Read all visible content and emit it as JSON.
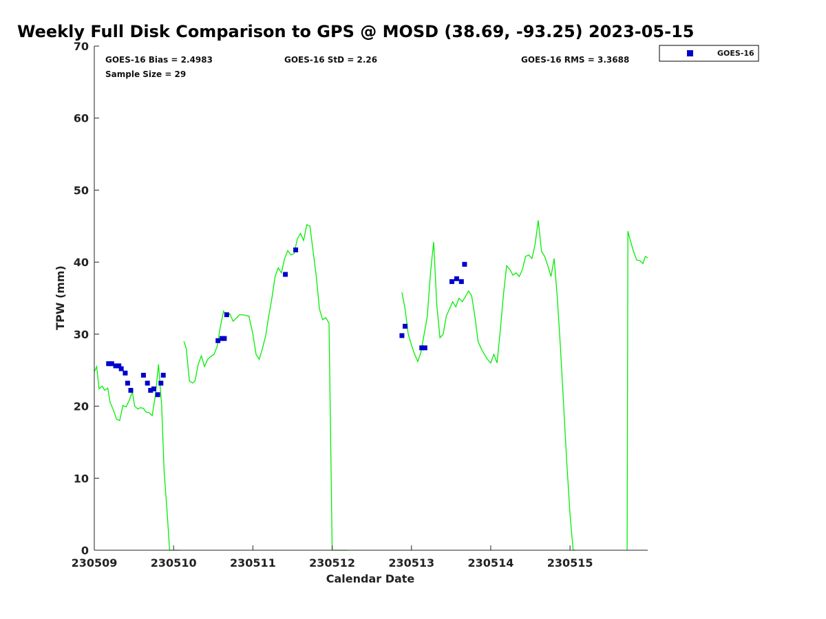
{
  "chart_data": {
    "type": "scatter",
    "title": "Weekly Full Disk Comparison to GPS @ MOSD (38.69, -93.25) 2023-05-15",
    "xlabel": "Calendar Date",
    "ylabel": "TPW (mm)",
    "xlim": [
      0,
      6.98
    ],
    "ylim": [
      0,
      70
    ],
    "x_tick_labels": [
      "230509",
      "230510",
      "230511",
      "230512",
      "230513",
      "230514",
      "230515"
    ],
    "x_tick_values": [
      0,
      1,
      2,
      3,
      4,
      5,
      6
    ],
    "y_ticks": [
      0,
      10,
      20,
      30,
      40,
      50,
      60,
      70
    ],
    "x_unit_note": "x values in days since 230509 00:00",
    "legend": {
      "position": "top-right (outside)",
      "entries": [
        "GOES-16"
      ]
    },
    "stats": {
      "bias": "GOES-16 Bias = 2.4983",
      "std": "GOES-16 StD = 2.26",
      "rms": "GOES-16 RMS = 3.3688",
      "sample": "Sample Size = 29"
    },
    "colors": {
      "goes16": "#0000cc",
      "gps_line": "#00ee00"
    },
    "series": [
      {
        "name": "GOES-16",
        "style": "square-marker",
        "x": [
          0.18,
          0.22,
          0.27,
          0.31,
          0.34,
          0.39,
          0.42,
          0.46,
          0.62,
          0.67,
          0.71,
          0.75,
          0.8,
          0.84,
          0.87,
          1.56,
          1.61,
          1.64,
          1.67,
          2.41,
          2.54,
          3.88,
          3.92,
          4.13,
          4.17,
          4.51,
          4.57,
          4.63,
          4.67
        ],
        "y": [
          25.9,
          25.9,
          25.6,
          25.6,
          25.2,
          24.6,
          23.2,
          22.2,
          24.3,
          23.2,
          22.2,
          22.4,
          21.6,
          23.2,
          24.3,
          29.1,
          29.4,
          29.4,
          32.7,
          38.3,
          41.7,
          29.8,
          31.1,
          28.1,
          28.1,
          37.3,
          37.7,
          37.3,
          39.7
        ]
      },
      {
        "name": "GPS",
        "style": "line",
        "segments": [
          {
            "x": [
              0.0,
              0.03,
              0.06,
              0.1,
              0.13,
              0.17,
              0.2,
              0.24,
              0.28,
              0.32,
              0.36,
              0.4,
              0.44,
              0.48,
              0.51,
              0.55,
              0.58,
              0.62,
              0.65,
              0.69,
              0.73,
              0.77,
              0.81,
              0.85,
              0.88,
              0.92,
              0.95,
              0.98,
              1.02,
              1.05,
              1.08
            ],
            "y": [
              24.8,
              25.5,
              22.4,
              22.8,
              22.2,
              22.5,
              20.5,
              19.5,
              18.2,
              18.0,
              20.1,
              19.9,
              20.8,
              22.0,
              20.0,
              19.6,
              19.8,
              19.7,
              19.2,
              19.1,
              18.7,
              21.5,
              25.8,
              20.0,
              11.0,
              5.0,
              0.0,
              0.0,
              0.0,
              0.0,
              0.0
            ]
          },
          {
            "x": [
              1.13,
              1.16,
              1.2,
              1.24,
              1.27,
              1.31,
              1.35,
              1.39,
              1.43,
              1.47,
              1.51,
              1.55,
              1.59,
              1.63,
              1.67,
              1.71,
              1.75,
              1.79,
              1.83,
              1.87,
              1.91,
              1.95,
              2.0,
              2.04,
              2.08,
              2.12,
              2.16,
              2.2,
              2.24,
              2.28,
              2.32,
              2.36,
              2.4,
              2.44,
              2.48,
              2.52,
              2.56,
              2.6,
              2.64,
              2.68,
              2.72,
              2.76,
              2.8,
              2.84,
              2.88,
              2.92,
              2.96,
              3.0,
              3.04,
              3.08,
              3.12,
              3.16,
              3.18,
              3.19
            ],
            "y": [
              29.0,
              28.0,
              23.5,
              23.2,
              23.5,
              25.8,
              27.0,
              25.5,
              26.5,
              26.9,
              27.2,
              28.3,
              31.0,
              33.2,
              32.5,
              32.8,
              31.8,
              32.2,
              32.7,
              32.7,
              32.6,
              32.5,
              30.0,
              27.2,
              26.5,
              28.0,
              29.7,
              32.5,
              35.0,
              38.0,
              39.2,
              38.5,
              40.5,
              41.6,
              41.0,
              41.2,
              43.2,
              44.0,
              43.0,
              45.2,
              45.0,
              41.5,
              38.0,
              33.5,
              32.0,
              32.3,
              31.5,
              0.0,
              0.0,
              0.0,
              0.0,
              0.0,
              0.0,
              0.0
            ]
          },
          {
            "x": [
              3.88,
              3.92,
              3.96,
              4.0,
              4.04,
              4.08,
              4.12,
              4.16,
              4.2,
              4.24,
              4.28,
              4.32,
              4.36,
              4.4,
              4.44,
              4.48,
              4.52,
              4.56,
              4.6,
              4.64,
              4.68,
              4.72,
              4.76,
              4.8,
              4.84,
              4.88,
              4.92,
              4.96,
              5.0,
              5.04,
              5.08,
              5.12,
              5.16,
              5.2,
              5.24,
              5.28,
              5.32,
              5.36,
              5.4,
              5.44,
              5.48,
              5.52,
              5.56,
              5.6,
              5.64,
              5.68,
              5.72,
              5.76,
              5.8,
              5.84,
              5.88,
              5.92,
              5.96,
              6.0,
              6.04,
              6.08
            ],
            "y": [
              35.8,
              33.5,
              30.0,
              28.5,
              27.2,
              26.2,
              27.5,
              30.0,
              32.5,
              38.5,
              42.8,
              34.0,
              29.5,
              30.0,
              32.5,
              33.5,
              34.5,
              33.8,
              35.0,
              34.5,
              35.2,
              36.0,
              35.3,
              32.5,
              29.0,
              28.0,
              27.2,
              26.5,
              26.0,
              27.2,
              26.0,
              30.5,
              35.5,
              39.5,
              39.0,
              38.2,
              38.5,
              38.0,
              39.0,
              40.8,
              41.0,
              40.5,
              42.5,
              45.8,
              41.5,
              40.8,
              39.5,
              38.0,
              40.5,
              35.0,
              28.0,
              20.0,
              12.0,
              5.0,
              0.0,
              0.0
            ]
          },
          {
            "x": [
              6.72,
              6.73,
              6.76,
              6.8,
              6.84,
              6.88,
              6.92,
              6.95,
              6.98
            ],
            "y": [
              0.0,
              44.3,
              43.0,
              41.5,
              40.3,
              40.2,
              39.8,
              40.8,
              40.6
            ]
          }
        ]
      }
    ]
  }
}
